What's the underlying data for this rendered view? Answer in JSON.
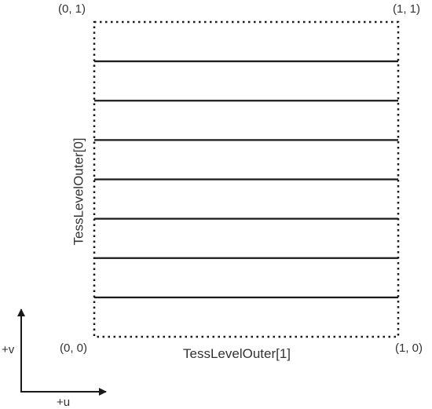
{
  "corners": {
    "top_left": "(0, 1)",
    "top_right": "(1, 1)",
    "bottom_left": "(0, 0)",
    "bottom_right": "(1, 0)"
  },
  "labels": {
    "tess_level_outer_1": "TessLevelOuter[1]",
    "tess_level_outer_0": "TessLevelOuter[0]"
  },
  "axes": {
    "v_label": "+v",
    "u_label": "+u"
  },
  "isolines": {
    "count": 7
  },
  "colors": {
    "stroke": "#1a1a1a",
    "text": "#333333"
  }
}
